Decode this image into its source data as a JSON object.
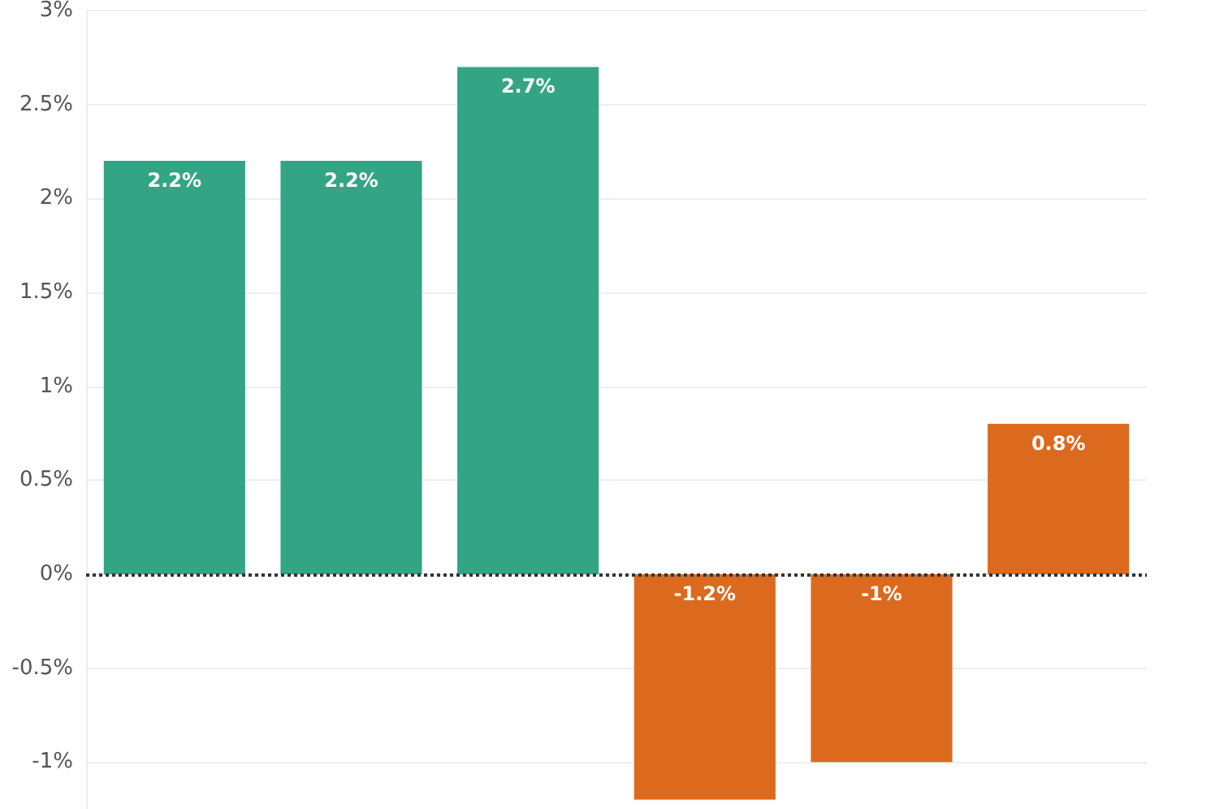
{
  "chart_data": {
    "type": "bar",
    "categories": [
      null,
      null,
      null,
      null,
      null,
      null
    ],
    "values": [
      2.2,
      2.2,
      2.7,
      -1.2,
      -1,
      0.8
    ],
    "colors": [
      "#34a584",
      "#34a584",
      "#34a584",
      "#dc6a1e",
      "#dc6a1e",
      "#dc6a1e"
    ],
    "value_labels": [
      "2.2%",
      "2.2%",
      "2.7%",
      "-1.2%",
      "-1%",
      "0.8%"
    ],
    "ylim": [
      -1.25,
      3
    ],
    "yticks": [
      {
        "value": -1,
        "label": "-1%"
      },
      {
        "value": -0.5,
        "label": "-0.5%"
      },
      {
        "value": 0,
        "label": "0%"
      },
      {
        "value": 0.5,
        "label": "0.5%"
      },
      {
        "value": 1,
        "label": "1%"
      },
      {
        "value": 1.5,
        "label": "1.5%"
      },
      {
        "value": 2,
        "label": "2%"
      },
      {
        "value": 2.5,
        "label": "2.5%"
      },
      {
        "value": 3,
        "label": "3%"
      }
    ],
    "grid": "y",
    "tick_labels": "y",
    "ref_lines": [
      {
        "axis": "y",
        "value": 0,
        "color": "#333333",
        "line_style": "dotted"
      }
    ]
  }
}
